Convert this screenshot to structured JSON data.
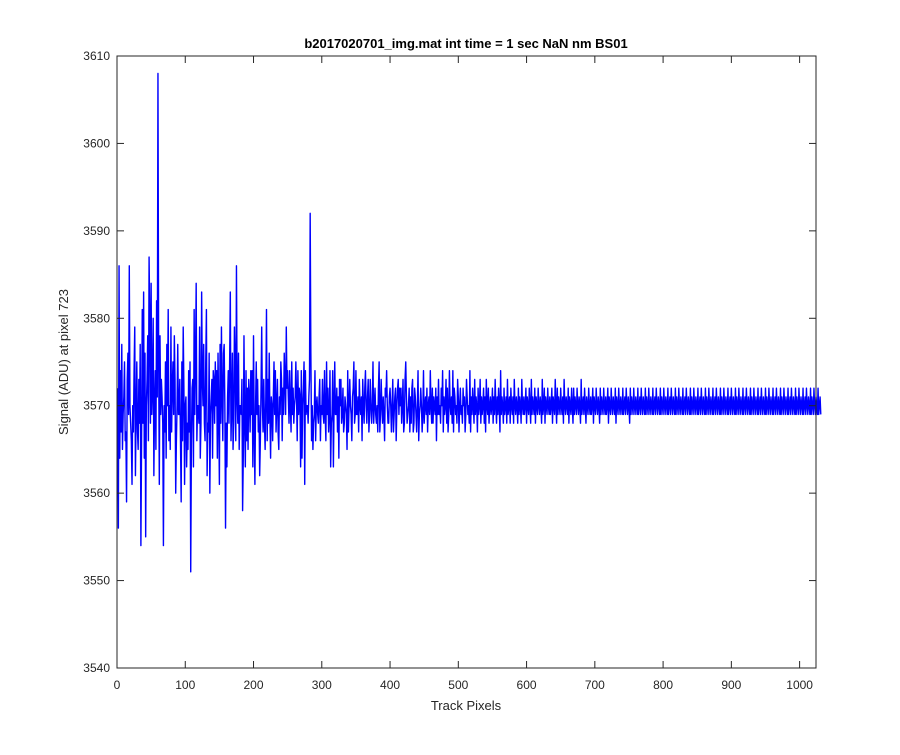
{
  "chart_data": {
    "type": "line",
    "title": "b2017020701_img.mat int time = 1 sec  NaN nm BS01",
    "xlabel": "Track Pixels",
    "ylabel": "Signal (ADU) at pixel 723",
    "xlim": [
      0,
      1024
    ],
    "ylim": [
      3540,
      3610
    ],
    "xticks": [
      0,
      100,
      200,
      300,
      400,
      500,
      600,
      700,
      800,
      900,
      1000
    ],
    "yticks": [
      3540,
      3550,
      3560,
      3570,
      3580,
      3590,
      3600,
      3610
    ],
    "grid": false,
    "series": [
      {
        "color": "#0000ff",
        "x_start": 1,
        "x_step": 1,
        "values": [
          3572,
          3556,
          3586,
          3564,
          3574,
          3567,
          3577,
          3565,
          3569,
          3571,
          3575,
          3566,
          3567,
          3559,
          3573,
          3576,
          3569,
          3586,
          3570,
          3568,
          3566,
          3561,
          3570,
          3567,
          3574,
          3579,
          3562,
          3569,
          3575,
          3567,
          3565,
          3573,
          3568,
          3577,
          3554,
          3566,
          3581,
          3568,
          3583,
          3564,
          3576,
          3555,
          3570,
          3573,
          3578,
          3566,
          3587,
          3580,
          3568,
          3584,
          3569,
          3572,
          3580,
          3562,
          3570,
          3574,
          3565,
          3582,
          3571,
          3608,
          3576,
          3561,
          3578,
          3569,
          3573,
          3571,
          3568,
          3554,
          3570,
          3567,
          3575,
          3564,
          3577,
          3570,
          3581,
          3566,
          3570,
          3565,
          3579,
          3567,
          3572,
          3575,
          3569,
          3578,
          3573,
          3560,
          3566,
          3570,
          3577,
          3569,
          3569,
          3573,
          3566,
          3559,
          3575,
          3566,
          3579,
          3572,
          3561,
          3570,
          3571,
          3563,
          3568,
          3565,
          3574,
          3567,
          3575,
          3551,
          3566,
          3572,
          3573,
          3563,
          3581,
          3569,
          3575,
          3584,
          3566,
          3570,
          3570,
          3568,
          3579,
          3564,
          3568,
          3583,
          3573,
          3570,
          3577,
          3568,
          3566,
          3575,
          3581,
          3562,
          3568,
          3567,
          3576,
          3560,
          3569,
          3571,
          3573,
          3564,
          3574,
          3573,
          3568,
          3575,
          3570,
          3574,
          3564,
          3576,
          3569,
          3561,
          3577,
          3568,
          3579,
          3571,
          3566,
          3576,
          3577,
          3570,
          3556,
          3568,
          3563,
          3571,
          3574,
          3568,
          3575,
          3583,
          3566,
          3570,
          3576,
          3565,
          3568,
          3579,
          3575,
          3566,
          3586,
          3571,
          3568,
          3576,
          3565,
          3570,
          3570,
          3569,
          3573,
          3558,
          3564,
          3578,
          3568,
          3563,
          3574,
          3566,
          3572,
          3565,
          3573,
          3571,
          3567,
          3574,
          3569,
          3574,
          3563,
          3578,
          3567,
          3561,
          3570,
          3575,
          3569,
          3573,
          3567,
          3570,
          3562,
          3566,
          3572,
          3579,
          3570,
          3567,
          3573,
          3568,
          3565,
          3571,
          3581,
          3566,
          3573,
          3568,
          3576,
          3569,
          3564,
          3571,
          3570,
          3566,
          3571,
          3575,
          3569,
          3574,
          3567,
          3570,
          3573,
          3567,
          3565,
          3571,
          3569,
          3575,
          3573,
          3566,
          3572,
          3569,
          3576,
          3573,
          3569,
          3579,
          3572,
          3574,
          3571,
          3568,
          3574,
          3570,
          3567,
          3575,
          3569,
          3572,
          3568,
          3570,
          3571,
          3575,
          3571,
          3566,
          3574,
          3569,
          3572,
          3571,
          3563,
          3574,
          3564,
          3570,
          3572,
          3575,
          3561,
          3574,
          3569,
          3570,
          3570,
          3568,
          3571,
          3573,
          3592,
          3576,
          3566,
          3570,
          3565,
          3568,
          3569,
          3574,
          3566,
          3570,
          3571,
          3569,
          3568,
          3571,
          3573,
          3566,
          3570,
          3569,
          3573,
          3569,
          3568,
          3574,
          3569,
          3566,
          3575,
          3569,
          3572,
          3567,
          3569,
          3574,
          3563,
          3568,
          3569,
          3574,
          3563,
          3570,
          3575,
          3569,
          3569,
          3572,
          3567,
          3571,
          3564,
          3573,
          3570,
          3573,
          3568,
          3569,
          3572,
          3567,
          3568,
          3571,
          3570,
          3569,
          3565,
          3574,
          3567,
          3570,
          3573,
          3570,
          3569,
          3566,
          3571,
          3572,
          3575,
          3568,
          3569,
          3574,
          3569,
          3569,
          3571,
          3567,
          3573,
          3570,
          3569,
          3571,
          3566,
          3573,
          3570,
          3568,
          3572,
          3574,
          3570,
          3568,
          3571,
          3573,
          3567,
          3569,
          3573,
          3570,
          3568,
          3570,
          3575,
          3568,
          3570,
          3572,
          3569,
          3568,
          3570,
          3567,
          3572,
          3575,
          3567,
          3569,
          3573,
          3570,
          3568,
          3571,
          3569,
          3566,
          3572,
          3571,
          3574,
          3570,
          3568,
          3568,
          3571,
          3572,
          3570,
          3567,
          3570,
          3573,
          3567,
          3569,
          3571,
          3572,
          3566,
          3570,
          3572,
          3573,
          3569,
          3572,
          3570,
          3572,
          3568,
          3570,
          3573,
          3567,
          3568,
          3573,
          3575,
          3571,
          3568,
          3569,
          3570,
          3572,
          3567,
          3571,
          3568,
          3572,
          3573,
          3567,
          3568,
          3572,
          3571,
          3569,
          3567,
          3570,
          3574,
          3566,
          3569,
          3570,
          3572,
          3570,
          3567,
          3569,
          3574,
          3568,
          3570,
          3571,
          3569,
          3572,
          3567,
          3570,
          3571,
          3569,
          3574,
          3570,
          3568,
          3572,
          3568,
          3571,
          3570,
          3569,
          3572,
          3566,
          3571,
          3569,
          3573,
          3569,
          3570,
          3568,
          3572,
          3570,
          3574,
          3567,
          3571,
          3569,
          3570,
          3573,
          3568,
          3572,
          3567,
          3569,
          3574,
          3570,
          3569,
          3571,
          3568,
          3574,
          3567,
          3572,
          3571,
          3569,
          3570,
          3568,
          3573,
          3571,
          3567,
          3570,
          3572,
          3569,
          3570,
          3568,
          3572,
          3570,
          3571,
          3567,
          3569,
          3573,
          3571,
          3569,
          3570,
          3568,
          3574,
          3567,
          3571,
          3569,
          3572,
          3570,
          3568,
          3573,
          3569,
          3571,
          3570,
          3567,
          3572,
          3569,
          3570,
          3573,
          3568,
          3571,
          3569,
          3570,
          3572,
          3568,
          3571,
          3567,
          3573,
          3570,
          3569,
          3572,
          3568,
          3570,
          3571,
          3569,
          3570,
          3572,
          3568,
          3571,
          3569,
          3573,
          3570,
          3568,
          3571,
          3569,
          3572,
          3570,
          3567,
          3574,
          3569,
          3571,
          3570,
          3568,
          3572,
          3569,
          3570,
          3571,
          3568,
          3573,
          3569,
          3570,
          3571,
          3568,
          3572,
          3570,
          3569,
          3571,
          3568,
          3573,
          3570,
          3569,
          3571,
          3570,
          3568,
          3572,
          3569,
          3571,
          3570,
          3568,
          3573,
          3570,
          3569,
          3571,
          3569,
          3570,
          3572,
          3568,
          3571,
          3570,
          3569,
          3572,
          3570,
          3568,
          3573,
          3569,
          3571,
          3570,
          3569,
          3572,
          3568,
          3571,
          3570,
          3569,
          3572,
          3570,
          3569,
          3571,
          3570,
          3568,
          3573,
          3569,
          3570,
          3572,
          3568,
          3571,
          3570,
          3569,
          3572,
          3570,
          3569,
          3571,
          3569,
          3570,
          3572,
          3568,
          3571,
          3570,
          3569,
          3573,
          3570,
          3568,
          3572,
          3569,
          3571,
          3570,
          3569,
          3572,
          3570,
          3569,
          3571,
          3568,
          3573,
          3570,
          3569,
          3571,
          3570,
          3569,
          3572,
          3568,
          3571,
          3570,
          3569,
          3572,
          3570,
          3568,
          3572,
          3569,
          3571,
          3570,
          3569,
          3572,
          3570,
          3569,
          3571,
          3570,
          3568,
          3573,
          3569,
          3570,
          3571,
          3569,
          3572,
          3570,
          3568,
          3571,
          3570,
          3569,
          3572,
          3570,
          3569,
          3571,
          3569,
          3570,
          3572,
          3568,
          3571,
          3570,
          3569,
          3572,
          3570,
          3569,
          3571,
          3570,
          3568,
          3572,
          3569,
          3571,
          3570,
          3569,
          3572,
          3570,
          3569,
          3571,
          3569,
          3570,
          3572,
          3568,
          3571,
          3570,
          3569,
          3572,
          3570,
          3569,
          3571,
          3570,
          3569,
          3572,
          3568,
          3571,
          3570,
          3569,
          3572,
          3570,
          3569,
          3571,
          3570,
          3569,
          3572,
          3569,
          3570,
          3571,
          3569,
          3572,
          3570,
          3569,
          3571,
          3570,
          3568,
          3572,
          3569,
          3571,
          3570,
          3569,
          3572,
          3570,
          3569,
          3571,
          3570,
          3569,
          3572,
          3569,
          3570,
          3571,
          3569,
          3572,
          3570,
          3569,
          3571,
          3570,
          3569,
          3572,
          3569,
          3571,
          3570,
          3569,
          3572,
          3570,
          3569,
          3571,
          3570,
          3569,
          3572,
          3569,
          3570,
          3571,
          3569,
          3572,
          3570,
          3569,
          3571,
          3570,
          3569,
          3572,
          3569,
          3571,
          3570,
          3569,
          3572,
          3570,
          3569,
          3571,
          3570,
          3569,
          3572,
          3569,
          3570,
          3571,
          3569,
          3572,
          3570,
          3569,
          3571,
          3570,
          3569,
          3572,
          3569,
          3571,
          3570,
          3569,
          3572,
          3570,
          3569,
          3571,
          3570,
          3569,
          3572,
          3569,
          3570,
          3571,
          3569,
          3572,
          3570,
          3569,
          3571,
          3570,
          3569,
          3572,
          3569,
          3571,
          3570,
          3569,
          3572,
          3570,
          3569,
          3571,
          3570,
          3569,
          3572,
          3569,
          3570,
          3571,
          3569,
          3572,
          3570,
          3569,
          3571,
          3570,
          3569,
          3572,
          3569,
          3571,
          3570,
          3569,
          3572,
          3570,
          3569,
          3571,
          3570,
          3569,
          3572,
          3569,
          3570,
          3571,
          3569,
          3572,
          3570,
          3569,
          3571,
          3570,
          3569,
          3572,
          3569,
          3571,
          3570,
          3569,
          3572,
          3570,
          3569,
          3571,
          3570,
          3569,
          3572,
          3569,
          3570,
          3571,
          3569,
          3572,
          3570,
          3569,
          3571,
          3570,
          3569,
          3572,
          3569,
          3571,
          3570,
          3569,
          3572,
          3570,
          3569,
          3571,
          3570,
          3569,
          3572,
          3569,
          3570,
          3571,
          3569,
          3572,
          3570,
          3569,
          3571,
          3570,
          3569,
          3572,
          3569,
          3571,
          3570,
          3569,
          3572,
          3570,
          3569,
          3571,
          3570,
          3569,
          3572,
          3569,
          3570,
          3571,
          3569,
          3572,
          3570,
          3569,
          3571,
          3570,
          3569,
          3572,
          3569,
          3571,
          3570,
          3569,
          3572,
          3570,
          3569,
          3571,
          3570,
          3569,
          3572,
          3569,
          3570,
          3571,
          3569,
          3572,
          3570,
          3569,
          3571,
          3570,
          3569,
          3572,
          3569,
          3571,
          3570,
          3569,
          3572,
          3570,
          3569,
          3571,
          3570,
          3569,
          3572,
          3569,
          3570,
          3571,
          3569,
          3572,
          3570,
          3569,
          3571,
          3570,
          3569,
          3572,
          3569,
          3571,
          3570,
          3569,
          3572,
          3570,
          3569,
          3571,
          3570,
          3569,
          3572,
          3569,
          3570,
          3571,
          3569,
          3572,
          3570,
          3569,
          3571,
          3570,
          3569,
          3572,
          3569,
          3571,
          3570,
          3569,
          3572,
          3570,
          3569,
          3571,
          3570,
          3569,
          3572,
          3569,
          3570,
          3571,
          3569
        ]
      }
    ]
  }
}
